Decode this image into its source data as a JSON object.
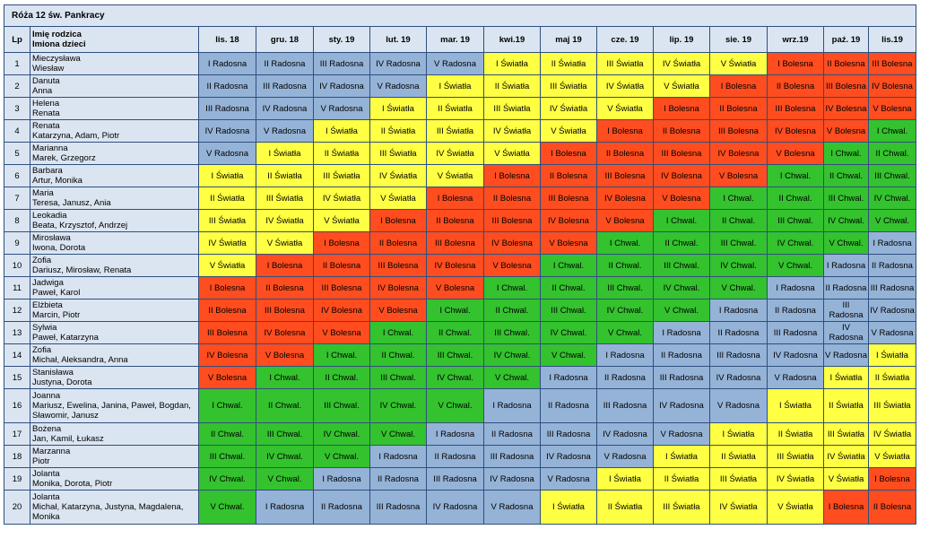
{
  "title": "Róża 12 św. Pankracy",
  "headers": {
    "lp": "Lp",
    "parent": "Imię rodzica",
    "children": "Imiona dzieci",
    "months": [
      "lis. 18",
      "gru. 18",
      "sty. 19",
      "lut. 19",
      "mar. 19",
      "kwi.19",
      "maj 19",
      "cze. 19",
      "lip. 19",
      "sie. 19",
      "wrz.19",
      "paź. 19",
      "lis.19"
    ]
  },
  "colors": {
    "Radosna": "#95b3d7",
    "Światła": "#ffff43",
    "Bolesna": "#ff4d1f",
    "Chwal.": "#34c22e"
  },
  "rows": [
    {
      "lp": "1",
      "parent": "Mieczysława",
      "children": "Wiesław",
      "cells": [
        "I Radosna",
        "II Radosna",
        "III Radosna",
        "IV Radosna",
        "V Radosna",
        "I Światła",
        "II Światła",
        "III Światła",
        "IV Światła",
        "V Światła",
        "I Bolesna",
        "II Bolesna",
        "III Bolesna"
      ]
    },
    {
      "lp": "2",
      "parent": "Danuta",
      "children": "Anna",
      "cells": [
        "II Radosna",
        "III Radosna",
        "IV Radosna",
        "V Radosna",
        "I Światła",
        "II Światła",
        "III Światła",
        "IV Światła",
        "V Światła",
        "I Bolesna",
        "II Bolesna",
        "III Bolesna",
        "IV Bolesna"
      ]
    },
    {
      "lp": "3",
      "parent": "Helena",
      "children": "Renata",
      "cells": [
        "III Radosna",
        "IV Radosna",
        "V Radosna",
        "I Światła",
        "II Światła",
        "III Światła",
        "IV Światła",
        "V Światła",
        "I Bolesna",
        "II Bolesna",
        "III Bolesna",
        "IV Bolesna",
        "V Bolesna"
      ]
    },
    {
      "lp": "4",
      "parent": "Renata",
      "children": "Katarzyna, Adam, Piotr",
      "cells": [
        "IV Radosna",
        "V Radosna",
        "I Światła",
        "II Światła",
        "III Światła",
        "IV Światła",
        "V Światła",
        "I Bolesna",
        "II Bolesna",
        "III Bolesna",
        "IV Bolesna",
        "V Bolesna",
        "I Chwal."
      ]
    },
    {
      "lp": "5",
      "parent": "Marianna",
      "children": "Marek, Grzegorz",
      "cells": [
        "V Radosna",
        "I Światła",
        "II Światła",
        "III Światła",
        "IV Światła",
        "V Światła",
        "I Bolesna",
        "II Bolesna",
        "III Bolesna",
        "IV Bolesna",
        "V Bolesna",
        "I Chwal.",
        "II Chwal."
      ]
    },
    {
      "lp": "6",
      "parent": "Barbara",
      "children": "Artur, Monika",
      "cells": [
        "I Światła",
        "II Światła",
        "III Światła",
        "IV Światła",
        "V Światła",
        "I Bolesna",
        "II Bolesna",
        "III Bolesna",
        "IV Bolesna",
        "V Bolesna",
        "I Chwal.",
        "II Chwal.",
        "III Chwal."
      ]
    },
    {
      "lp": "7",
      "parent": "Maria",
      "children": "Teresa, Janusz, Ania",
      "cells": [
        "II Światła",
        "III Światła",
        "IV Światła",
        "V Światła",
        "I Bolesna",
        "II Bolesna",
        "III Bolesna",
        "IV Bolesna",
        "V Bolesna",
        "I Chwal.",
        "II Chwal.",
        "III Chwal.",
        "IV Chwal."
      ]
    },
    {
      "lp": "8",
      "parent": "Leokadia",
      "children": "Beata, Krzysztof, Andrzej",
      "cells": [
        "III Światła",
        "IV Światła",
        "V Światła",
        "I Bolesna",
        "II Bolesna",
        "III Bolesna",
        "IV Bolesna",
        "V Bolesna",
        "I Chwal.",
        "II Chwal.",
        "III Chwal.",
        "IV Chwal.",
        "V Chwal."
      ]
    },
    {
      "lp": "9",
      "parent": "Mirosława",
      "children": "Iwona, Dorota",
      "cells": [
        "IV Światła",
        "V Światła",
        "I Bolesna",
        "II Bolesna",
        "III Bolesna",
        "IV Bolesna",
        "V Bolesna",
        "I Chwal.",
        "II Chwal.",
        "III Chwal.",
        "IV Chwal.",
        "V Chwal.",
        "I Radosna"
      ]
    },
    {
      "lp": "10",
      "parent": "Zofia",
      "children": "Dariusz, Mirosław, Renata",
      "cells": [
        "V Światła",
        "I Bolesna",
        "II Bolesna",
        "III Bolesna",
        "IV Bolesna",
        "V Bolesna",
        "I Chwal.",
        "II Chwal.",
        "III Chwal.",
        "IV Chwal.",
        "V Chwal.",
        "I Radosna",
        "II Radosna"
      ]
    },
    {
      "lp": "11",
      "parent": "Jadwiga",
      "children": "Paweł, Karol",
      "cells": [
        "I Bolesna",
        "II Bolesna",
        "III Bolesna",
        "IV Bolesna",
        "V Bolesna",
        "I Chwal.",
        "II Chwal.",
        "III Chwal.",
        "IV Chwal.",
        "V Chwal.",
        "I Radosna",
        "II Radosna",
        "III Radosna"
      ]
    },
    {
      "lp": "12",
      "parent": "Elżbieta",
      "children": "Marcin, Piotr",
      "cells": [
        "II Bolesna",
        "III Bolesna",
        "IV Bolesna",
        "V Bolesna",
        "I Chwal.",
        "II Chwal.",
        "III Chwal.",
        "IV Chwal.",
        "V Chwal.",
        "I Radosna",
        "II Radosna",
        "III Radosna",
        "IV Radosna"
      ]
    },
    {
      "lp": "13",
      "parent": "Sylwia",
      "children": "Paweł, Katarzyna",
      "cells": [
        "III Bolesna",
        "IV Bolesna",
        "V Bolesna",
        "I Chwal.",
        "II Chwal.",
        "III Chwal.",
        "IV Chwal.",
        "V Chwal.",
        "I Radosna",
        "II Radosna",
        "III Radosna",
        "IV Radosna",
        "V Radosna"
      ]
    },
    {
      "lp": "14",
      "parent": "Zofia",
      "children": "Michał, Aleksandra, Anna",
      "cells": [
        "IV Bolesna",
        "V Bolesna",
        "I Chwal.",
        "II Chwal.",
        "III Chwal.",
        "IV Chwal.",
        "V Chwal.",
        "I Radosna",
        "II Radosna",
        "III Radosna",
        "IV Radosna",
        "V Radosna",
        "I Światła"
      ]
    },
    {
      "lp": "15",
      "parent": "Stanisława",
      "children": "Justyna, Dorota",
      "cells": [
        "V Bolesna",
        "I Chwal.",
        "II Chwal.",
        "III Chwal.",
        "IV Chwal.",
        "V Chwal.",
        "I Radosna",
        "II Radosna",
        "III Radosna",
        "IV Radosna",
        "V Radosna",
        "I Światła",
        "II Światła"
      ]
    },
    {
      "lp": "16",
      "parent": "Joanna",
      "children": "Mariusz, Ewelina, Janina, Paweł, Bogdan, Sławomir, Janusz",
      "cells": [
        "I Chwal.",
        "II Chwal.",
        "III Chwal.",
        "IV Chwal.",
        "V Chwal.",
        "I Radosna",
        "II Radosna",
        "III Radosna",
        "IV Radosna",
        "V Radosna",
        "I Światła",
        "II Światła",
        "III Światła"
      ]
    },
    {
      "lp": "17",
      "parent": "Bożena",
      "children": "Jan, Kamil, Łukasz",
      "cells": [
        "II Chwal.",
        "III Chwal.",
        "IV Chwal.",
        "V Chwal.",
        "I Radosna",
        "II Radosna",
        "III Radosna",
        "IV Radosna",
        "V Radosna",
        "I Światła",
        "II Światła",
        "III Światła",
        "IV Światła"
      ]
    },
    {
      "lp": "18",
      "parent": "Marzanna",
      "children": "Piotr",
      "cells": [
        "III Chwal.",
        "IV Chwal.",
        "V Chwal.",
        "I Radosna",
        "II Radosna",
        "III Radosna",
        "IV Radosna",
        "V Radosna",
        "I Światła",
        "II Światła",
        "III Światła",
        "IV Światła",
        "V Światła"
      ]
    },
    {
      "lp": "19",
      "parent": "Jolanta",
      "children": "Monika, Dorota, Piotr",
      "cells": [
        "IV Chwal.",
        "V Chwal.",
        "I Radosna",
        "II Radosna",
        "III Radosna",
        "IV Radosna",
        "V Radosna",
        "I Światła",
        "II Światła",
        "III Światła",
        "IV Światła",
        "V Światła",
        "I Bolesna"
      ]
    },
    {
      "lp": "20",
      "parent": "Jolanta",
      "children": "Michał, Katarzyna, Justyna, Magdalena, Monika",
      "cells": [
        "V Chwal.",
        "I Radosna",
        "II Radosna",
        "III Radosna",
        "IV Radosna",
        "V Radosna",
        "I Światła",
        "II Światła",
        "III Światła",
        "IV Światła",
        "V Światła",
        "I Bolesna",
        "II Bolesna"
      ]
    }
  ]
}
